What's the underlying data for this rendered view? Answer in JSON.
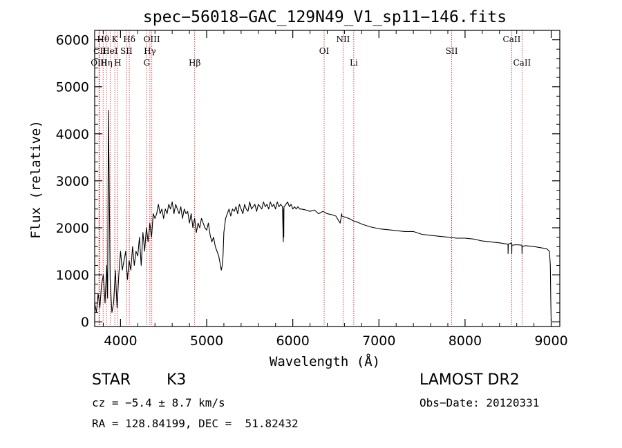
{
  "chart_data": {
    "type": "line",
    "title": "spec−56018−GAC_129N49_V1_sp11−146.fits",
    "xlabel": "Wavelength (Å)",
    "ylabel": "Flux (relative)",
    "xlim": [
      3700,
      9100
    ],
    "ylim": [
      -100,
      6200
    ],
    "xticks": [
      4000,
      5000,
      6000,
      7000,
      8000,
      9000
    ],
    "yticks": [
      0,
      1000,
      2000,
      3000,
      4000,
      5000,
      6000
    ],
    "grid": false,
    "series": [
      {
        "x": [
          3700,
          3720,
          3740,
          3760,
          3780,
          3800,
          3820,
          3840,
          3850,
          3860,
          3880,
          3900,
          3920,
          3940,
          3960,
          3980,
          4000,
          4020,
          4040,
          4060,
          4080,
          4100,
          4120,
          4140,
          4160,
          4180,
          4200,
          4220,
          4240,
          4260,
          4280,
          4300,
          4320,
          4340,
          4360,
          4380,
          4400,
          4420,
          4440,
          4460,
          4480,
          4500,
          4520,
          4540,
          4560,
          4580,
          4600,
          4620,
          4640,
          4660,
          4680,
          4700,
          4720,
          4740,
          4760,
          4780,
          4800,
          4820,
          4840,
          4860,
          4880,
          4900,
          4920,
          4940,
          4960,
          4980,
          5000,
          5020,
          5040,
          5060,
          5080,
          5100,
          5120,
          5140,
          5160,
          5170,
          5180,
          5190,
          5200,
          5220,
          5240,
          5260,
          5280,
          5300,
          5320,
          5340,
          5360,
          5380,
          5400,
          5420,
          5440,
          5460,
          5480,
          5500,
          5520,
          5540,
          5560,
          5580,
          5600,
          5620,
          5640,
          5660,
          5680,
          5700,
          5720,
          5740,
          5760,
          5780,
          5800,
          5820,
          5840,
          5860,
          5880,
          5890,
          5893,
          5895,
          5898,
          5900,
          5920,
          5940,
          5960,
          5980,
          6000,
          6020,
          6040,
          6060,
          6080,
          6100,
          6150,
          6200,
          6250,
          6300,
          6350,
          6400,
          6450,
          6500,
          6550,
          6560,
          6563,
          6566,
          6570,
          6600,
          6650,
          6700,
          6750,
          6800,
          6900,
          7000,
          7100,
          7200,
          7300,
          7400,
          7500,
          7600,
          7700,
          7800,
          7900,
          8000,
          8100,
          8200,
          8300,
          8400,
          8498,
          8500,
          8502,
          8540,
          8542,
          8544,
          8600,
          8660,
          8662,
          8664,
          8700,
          8800,
          8900,
          8950,
          8980,
          8990,
          8995,
          9000
        ],
        "values": [
          400,
          200,
          600,
          300,
          800,
          1000,
          400,
          1200,
          500,
          4500,
          900,
          200,
          400,
          1100,
          300,
          1000,
          1500,
          1100,
          1300,
          1500,
          900,
          1300,
          1100,
          1600,
          1200,
          1500,
          1400,
          1800,
          1200,
          1900,
          1500,
          2000,
          1700,
          2100,
          1800,
          2300,
          2200,
          2300,
          2500,
          2300,
          2400,
          2200,
          2400,
          2300,
          2500,
          2400,
          2550,
          2300,
          2500,
          2400,
          2300,
          2450,
          2200,
          2400,
          2300,
          2350,
          2100,
          2300,
          2000,
          2200,
          1900,
          2100,
          2000,
          2200,
          2100,
          2000,
          1950,
          2100,
          1850,
          1700,
          1800,
          1600,
          1500,
          1400,
          1200,
          1100,
          1200,
          1400,
          1900,
          2200,
          2300,
          2400,
          2250,
          2400,
          2350,
          2450,
          2300,
          2500,
          2400,
          2300,
          2500,
          2400,
          2350,
          2550,
          2400,
          2450,
          2500,
          2350,
          2500,
          2450,
          2400,
          2550,
          2450,
          2500,
          2400,
          2550,
          2450,
          2500,
          2400,
          2550,
          2450,
          2500,
          2450,
          1700,
          2400,
          1800,
          2450,
          2450,
          2500,
          2550,
          2450,
          2500,
          2400,
          2450,
          2400,
          2450,
          2400,
          2400,
          2380,
          2350,
          2380,
          2300,
          2350,
          2300,
          2280,
          2250,
          2100,
          2200,
          2250,
          2300,
          2250,
          2230,
          2200,
          2150,
          2120,
          2080,
          2020,
          1980,
          1960,
          1940,
          1920,
          1920,
          1860,
          1840,
          1820,
          1800,
          1780,
          1780,
          1760,
          1720,
          1700,
          1680,
          1650,
          1450,
          1650,
          1680,
          1450,
          1630,
          1640,
          1630,
          1450,
          1600,
          1620,
          1600,
          1570,
          1550,
          1500,
          1200,
          500,
          0
        ]
      }
    ],
    "line_labels": [
      {
        "name": "Hθ",
        "wavelength": 3798,
        "row": 0
      },
      {
        "name": "K",
        "wavelength": 3934,
        "row": 0
      },
      {
        "name": "Hδ",
        "wavelength": 4102,
        "row": 0
      },
      {
        "name": "OIII",
        "wavelength": 4363,
        "row": 0
      },
      {
        "name": "NII",
        "wavelength": 6584,
        "row": 0
      },
      {
        "name": "CaII",
        "wavelength": 8542,
        "row": 0
      },
      {
        "name": "CII",
        "wavelength": 3760,
        "row": 1
      },
      {
        "name": "HeI",
        "wavelength": 3880,
        "row": 1
      },
      {
        "name": "SII",
        "wavelength": 4068,
        "row": 1
      },
      {
        "name": "Hγ",
        "wavelength": 4341,
        "row": 1
      },
      {
        "name": "OI",
        "wavelength": 6364,
        "row": 1
      },
      {
        "name": "SII",
        "wavelength": 7845,
        "row": 1
      },
      {
        "name": "OIII",
        "wavelength": 3750,
        "row": 2
      },
      {
        "name": "Hη",
        "wavelength": 3836,
        "row": 2
      },
      {
        "name": "H",
        "wavelength": 3968,
        "row": 2
      },
      {
        "name": "G",
        "wavelength": 4304,
        "row": 2
      },
      {
        "name": "Hβ",
        "wavelength": 4861,
        "row": 2
      },
      {
        "name": "Li",
        "wavelength": 6708,
        "row": 2
      },
      {
        "name": "CaII",
        "wavelength": 8662,
        "row": 2
      }
    ],
    "line_marker_wavelengths": [
      3750,
      3760,
      3798,
      3836,
      3880,
      3934,
      3968,
      4068,
      4102,
      4304,
      4341,
      4363,
      4861,
      6364,
      6584,
      6708,
      7845,
      8542,
      8662
    ],
    "colors": {
      "spectrum": "#000000",
      "line_markers": "#cc0000",
      "axes": "#000000"
    }
  },
  "info": {
    "object_class": "STAR",
    "subclass": "K3",
    "survey": "LAMOST DR2",
    "redshift": "cz = −5.4 ± 8.7 km/s",
    "obs_date": "Obs−Date: 20120331",
    "coordinates": "RA = 128.84199, DEC =  51.82432"
  }
}
